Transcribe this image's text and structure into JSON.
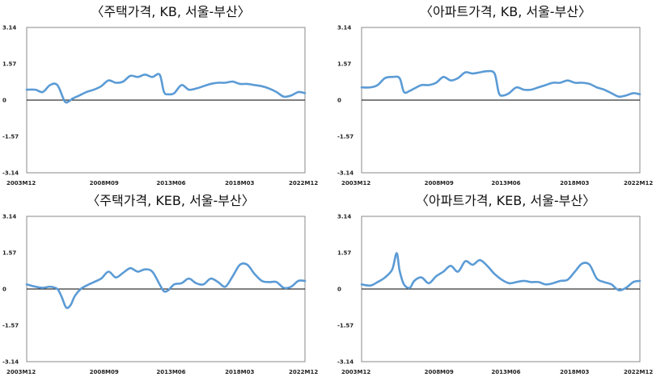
{
  "chart_data": [
    {
      "type": "line",
      "title": "〈주택가격, KB, 서울-부산〉",
      "x_tick_labels": [
        "2003M12",
        "2008M09",
        "2013M06",
        "2018M03",
        "2022M12"
      ],
      "y_tick_labels": [
        "3.14",
        "1.57",
        "0",
        "-1.57",
        "-3.14"
      ],
      "ylim": [
        -3.14,
        3.14
      ],
      "grid": false,
      "color": "#5b9bd5",
      "x": [
        2003.9,
        2004.5,
        2005.0,
        2005.5,
        2006.0,
        2006.5,
        2006.8,
        2007.0,
        2007.5,
        2008.0,
        2008.5,
        2009.0,
        2009.5,
        2010.0,
        2010.5,
        2011.0,
        2011.5,
        2012.0,
        2012.5,
        2013.0,
        2013.3,
        2013.6,
        2014.0,
        2014.5,
        2015.0,
        2015.5,
        2016.0,
        2016.5,
        2017.0,
        2017.5,
        2018.0,
        2018.5,
        2019.0,
        2019.5,
        2020.0,
        2020.5,
        2021.0,
        2021.5,
        2022.0,
        2022.5,
        2022.95
      ],
      "values": [
        0.45,
        0.45,
        0.35,
        0.65,
        0.65,
        -0.05,
        -0.05,
        0.05,
        0.2,
        0.35,
        0.45,
        0.6,
        0.85,
        0.75,
        0.8,
        1.05,
        1.0,
        1.1,
        1.0,
        1.1,
        0.35,
        0.25,
        0.3,
        0.65,
        0.45,
        0.5,
        0.6,
        0.7,
        0.75,
        0.75,
        0.8,
        0.7,
        0.7,
        0.65,
        0.6,
        0.5,
        0.35,
        0.15,
        0.2,
        0.35,
        0.3
      ]
    },
    {
      "type": "line",
      "title": "〈아파트가격, KB, 서울-부산〉",
      "x_tick_labels": [
        "2003M12",
        "2008M09",
        "2013M06",
        "2018M03",
        "2022M12"
      ],
      "y_tick_labels": [
        "3.14",
        "1.57",
        "0",
        "-1.57",
        "-3.14"
      ],
      "ylim": [
        -3.14,
        3.14
      ],
      "grid": false,
      "color": "#5b9bd5",
      "x": [
        2003.9,
        2004.5,
        2005.0,
        2005.5,
        2006.0,
        2006.5,
        2006.8,
        2007.2,
        2007.5,
        2008.0,
        2008.5,
        2009.0,
        2009.5,
        2010.0,
        2010.5,
        2011.0,
        2011.5,
        2012.0,
        2012.5,
        2013.0,
        2013.3,
        2013.6,
        2014.0,
        2014.5,
        2015.0,
        2015.5,
        2016.0,
        2016.5,
        2017.0,
        2017.5,
        2018.0,
        2018.5,
        2019.0,
        2019.5,
        2020.0,
        2020.5,
        2021.0,
        2021.5,
        2022.0,
        2022.5,
        2022.95
      ],
      "values": [
        0.55,
        0.55,
        0.65,
        0.95,
        1.0,
        0.95,
        0.35,
        0.4,
        0.5,
        0.65,
        0.65,
        0.75,
        1.0,
        0.85,
        0.95,
        1.2,
        1.15,
        1.2,
        1.25,
        1.15,
        0.3,
        0.2,
        0.3,
        0.55,
        0.45,
        0.45,
        0.55,
        0.65,
        0.75,
        0.75,
        0.85,
        0.75,
        0.75,
        0.7,
        0.55,
        0.45,
        0.3,
        0.15,
        0.2,
        0.3,
        0.25
      ]
    },
    {
      "type": "line",
      "title": "〈주택가격, KEB, 서울-부산〉",
      "x_tick_labels": [
        "2003M12",
        "2008M09",
        "2013M06",
        "2018M03",
        "2022M12"
      ],
      "y_tick_labels": [
        "3.14",
        "1.57",
        "0",
        "-1.57",
        "-3.14"
      ],
      "ylim": [
        -3.14,
        3.14
      ],
      "grid": false,
      "color": "#5b9bd5",
      "x": [
        2003.9,
        2004.5,
        2005.0,
        2005.5,
        2006.0,
        2006.3,
        2006.6,
        2006.9,
        2007.2,
        2007.6,
        2008.0,
        2008.5,
        2009.0,
        2009.5,
        2010.0,
        2010.5,
        2011.0,
        2011.5,
        2012.0,
        2012.5,
        2013.0,
        2013.3,
        2013.6,
        2014.0,
        2014.5,
        2015.0,
        2015.5,
        2016.0,
        2016.5,
        2017.0,
        2017.5,
        2018.0,
        2018.5,
        2019.0,
        2019.5,
        2020.0,
        2020.5,
        2021.0,
        2021.5,
        2022.0,
        2022.5,
        2022.95
      ],
      "values": [
        0.2,
        0.1,
        0.05,
        0.1,
        0.0,
        -0.35,
        -0.8,
        -0.7,
        -0.3,
        0.0,
        0.15,
        0.3,
        0.45,
        0.75,
        0.5,
        0.7,
        0.9,
        0.75,
        0.85,
        0.75,
        0.2,
        -0.1,
        -0.05,
        0.2,
        0.25,
        0.45,
        0.25,
        0.2,
        0.45,
        0.3,
        0.1,
        0.55,
        1.05,
        1.05,
        0.65,
        0.35,
        0.3,
        0.3,
        0.05,
        0.1,
        0.35,
        0.35
      ]
    },
    {
      "type": "line",
      "title": "〈아파트가격, KEB, 서울-부산〉",
      "x_tick_labels": [
        "2003M12",
        "2008M09",
        "2013M06",
        "2018M03",
        "2022M12"
      ],
      "y_tick_labels": [
        "3.14",
        "1.57",
        "0",
        "-1.57",
        "-3.14"
      ],
      "ylim": [
        -3.14,
        3.14
      ],
      "grid": false,
      "color": "#5b9bd5",
      "x": [
        2003.9,
        2004.5,
        2005.0,
        2005.5,
        2006.0,
        2006.3,
        2006.5,
        2006.8,
        2007.2,
        2007.5,
        2008.0,
        2008.5,
        2009.0,
        2009.5,
        2010.0,
        2010.5,
        2011.0,
        2011.5,
        2012.0,
        2012.5,
        2013.0,
        2013.5,
        2014.0,
        2014.5,
        2015.0,
        2015.5,
        2016.0,
        2016.5,
        2017.0,
        2017.5,
        2018.0,
        2018.5,
        2019.0,
        2019.5,
        2020.0,
        2020.5,
        2021.0,
        2021.5,
        2022.0,
        2022.5,
        2022.95
      ],
      "values": [
        0.2,
        0.15,
        0.3,
        0.5,
        0.85,
        1.55,
        0.8,
        0.2,
        0.05,
        0.35,
        0.5,
        0.25,
        0.55,
        0.75,
        1.0,
        0.75,
        1.2,
        1.05,
        1.25,
        1.0,
        0.65,
        0.4,
        0.25,
        0.3,
        0.35,
        0.3,
        0.3,
        0.2,
        0.25,
        0.35,
        0.4,
        0.75,
        1.1,
        1.05,
        0.45,
        0.3,
        0.2,
        -0.05,
        0.05,
        0.3,
        0.35
      ]
    }
  ]
}
